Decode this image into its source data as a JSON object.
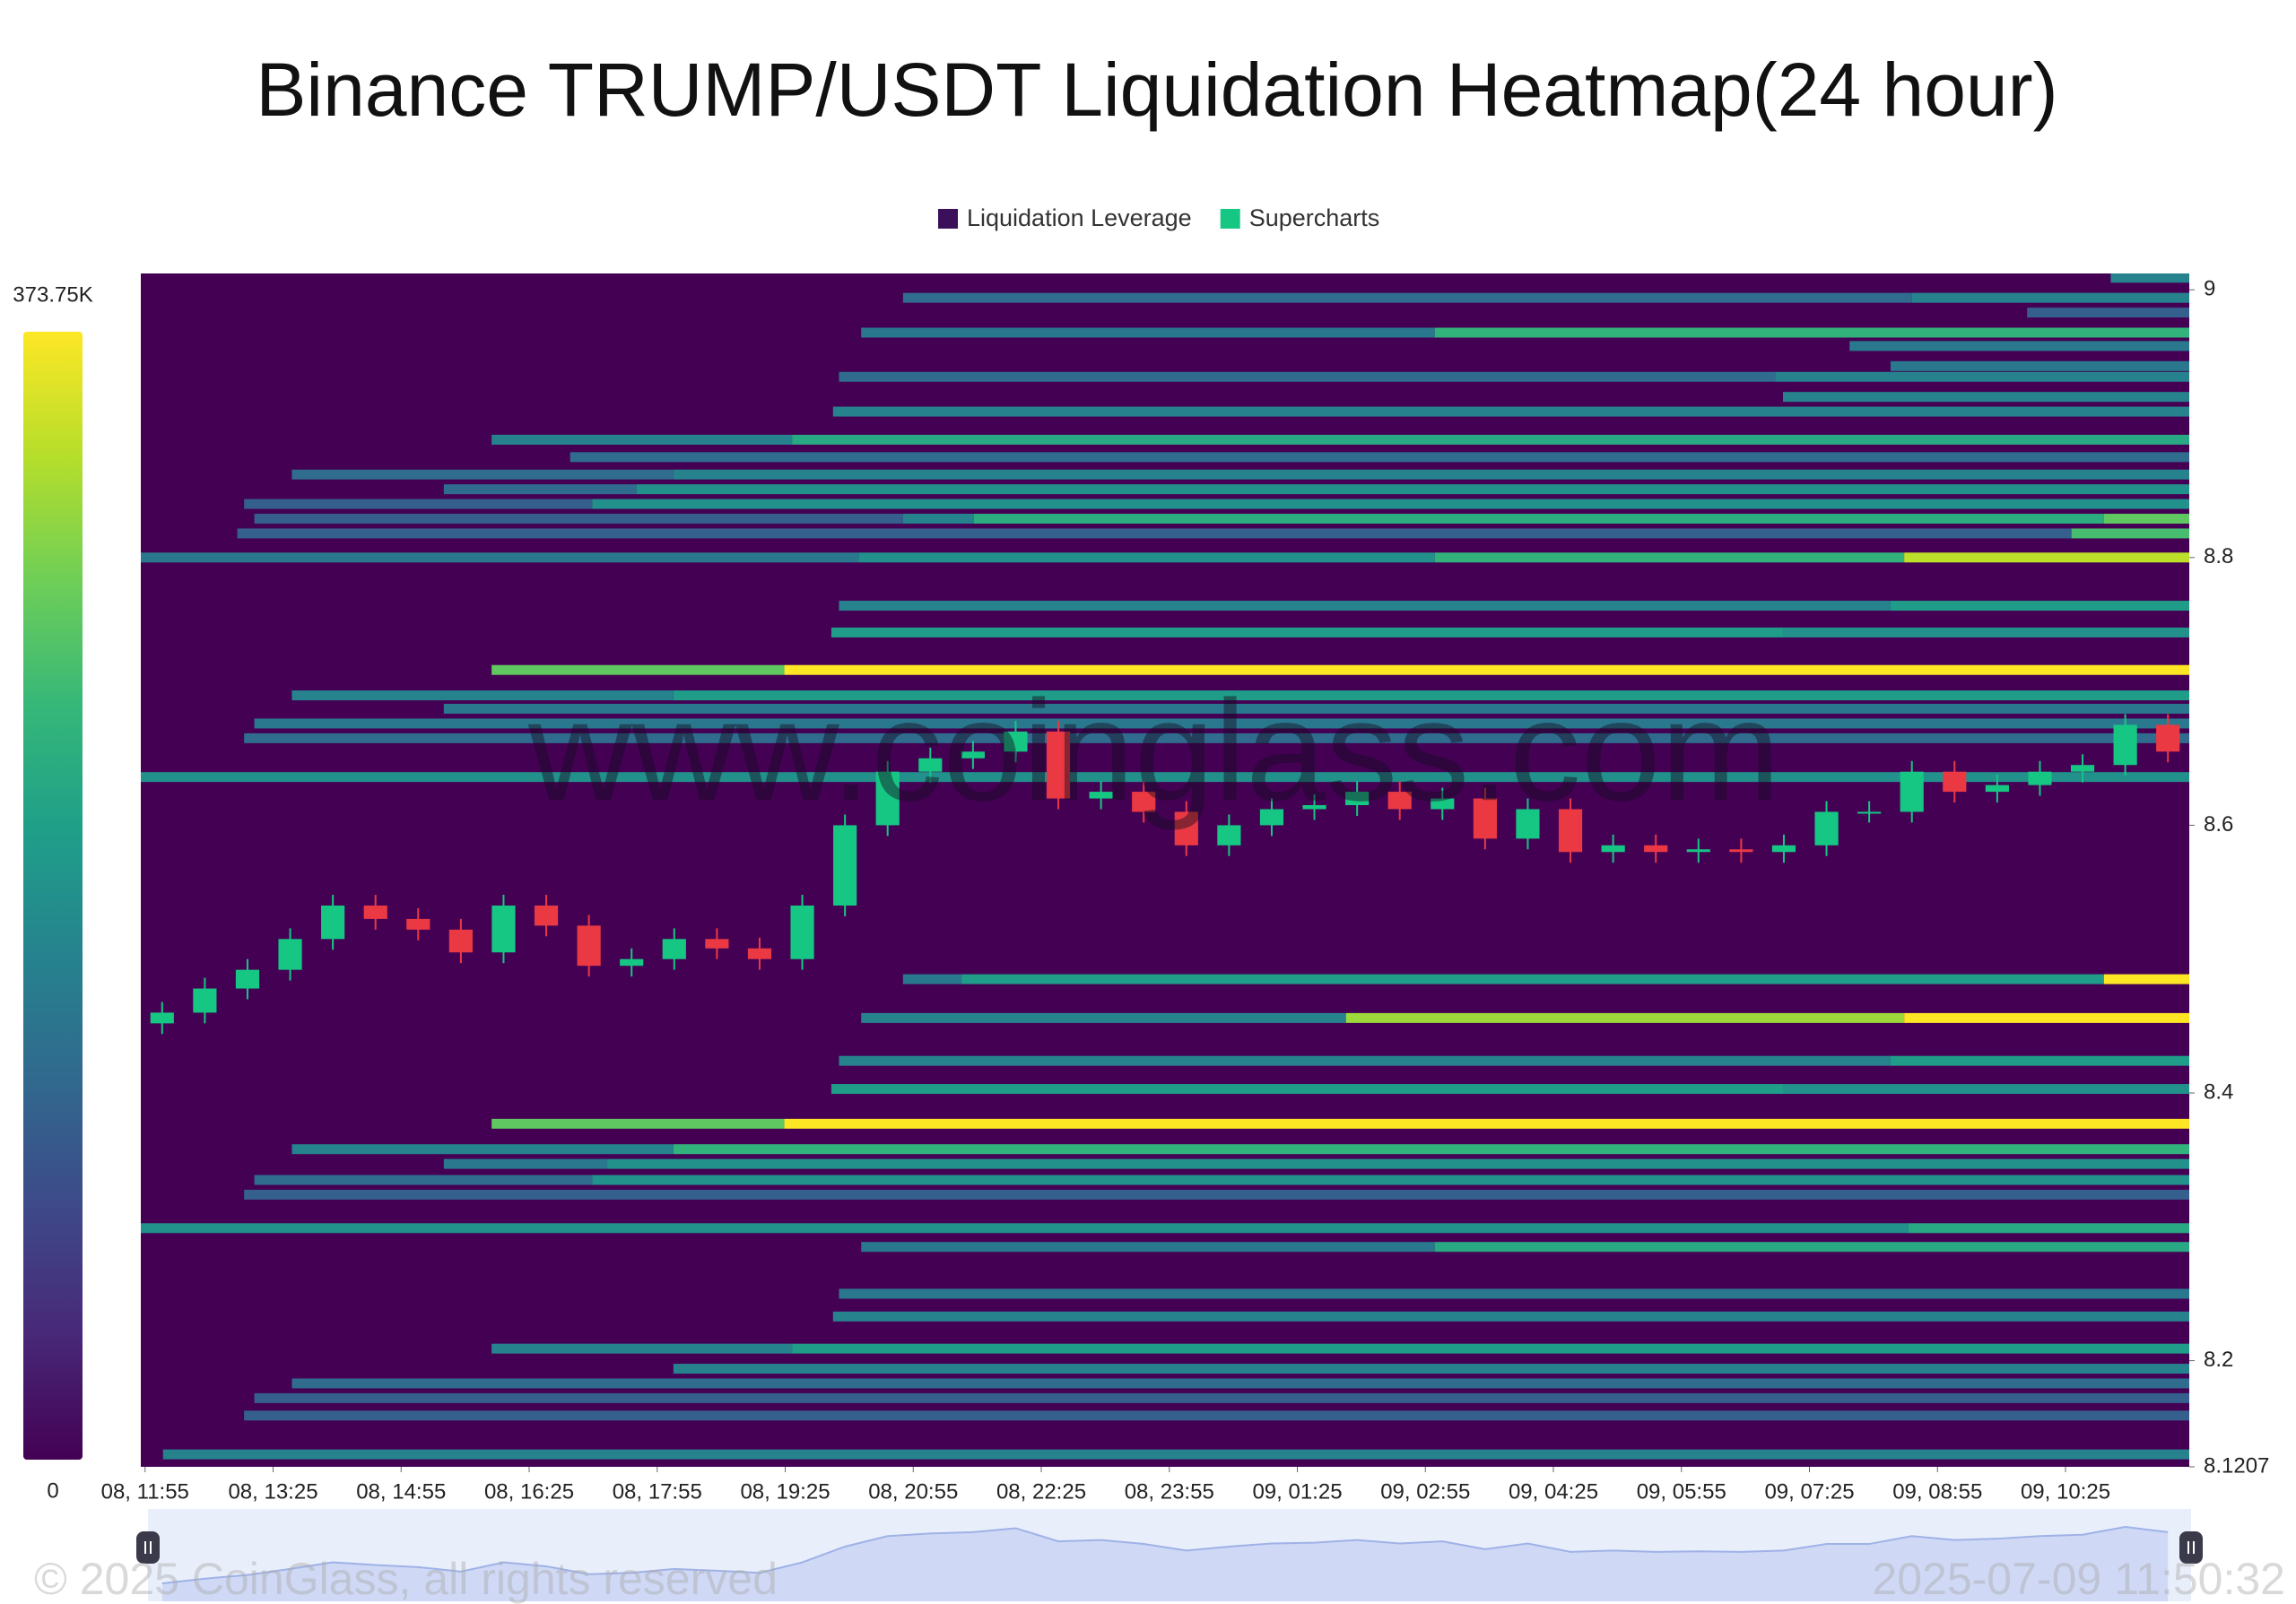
{
  "chart_data": {
    "type": "heatmap",
    "title": "Binance TRUMP/USDT Liquidation Heatmap(24 hour)",
    "legend": [
      {
        "name": "Liquidation Leverage",
        "color": "#3b0f5a"
      },
      {
        "name": "Supercharts",
        "color": "#16c784"
      }
    ],
    "xlim": [
      0,
      24
    ],
    "xticks": [
      {
        "value": 0.05,
        "label": "08, 11:55"
      },
      {
        "value": 1.55,
        "label": "08, 13:25"
      },
      {
        "value": 3.05,
        "label": "08, 14:55"
      },
      {
        "value": 4.55,
        "label": "08, 16:25"
      },
      {
        "value": 6.05,
        "label": "08, 17:55"
      },
      {
        "value": 7.55,
        "label": "08, 19:25"
      },
      {
        "value": 9.05,
        "label": "08, 20:55"
      },
      {
        "value": 10.55,
        "label": "08, 22:25"
      },
      {
        "value": 12.05,
        "label": "08, 23:55"
      },
      {
        "value": 13.55,
        "label": "09, 01:25"
      },
      {
        "value": 15.05,
        "label": "09, 02:55"
      },
      {
        "value": 16.55,
        "label": "09, 04:25"
      },
      {
        "value": 18.05,
        "label": "09, 05:55"
      },
      {
        "value": 19.55,
        "label": "09, 07:25"
      },
      {
        "value": 21.05,
        "label": "09, 08:55"
      },
      {
        "value": 22.55,
        "label": "09, 10:25"
      }
    ],
    "ylim": [
      8.1207,
      9.0122
    ],
    "yticks": [
      9,
      8.8,
      8.6,
      8.4,
      8.2,
      8.1207
    ],
    "colorscale": [
      "#440154",
      "#482878",
      "#3e4989",
      "#31688e",
      "#26828e",
      "#1f9e89",
      "#35b779",
      "#6ece58",
      "#b5de2b",
      "#fde725"
    ],
    "colorbar": {
      "lim": [
        0,
        373.75
      ],
      "ticks": [
        {
          "value": 0,
          "label": "0"
        },
        {
          "value": 373.75,
          "label": "373.75K"
        }
      ]
    },
    "heatmap": [
      {
        "price": 9.009,
        "start": [
          23.08
        ],
        "values": [
          168
        ]
      },
      {
        "price": 8.994,
        "start": [
          8.93,
          20.75
        ],
        "values": [
          131,
          168
        ]
      },
      {
        "price": 8.983,
        "start": [
          22.1
        ],
        "values": [
          112
        ]
      },
      {
        "price": 8.968,
        "start": [
          8.44,
          15.16
        ],
        "values": [
          150,
          243
        ]
      },
      {
        "price": 8.958,
        "start": [
          20.02
        ],
        "values": [
          150
        ]
      },
      {
        "price": 8.943,
        "start": [
          20.5
        ],
        "values": [
          150
        ]
      },
      {
        "price": 8.935,
        "start": [
          8.18,
          19.15
        ],
        "values": [
          131,
          168
        ]
      },
      {
        "price": 8.92,
        "start": [
          19.24
        ],
        "values": [
          168
        ]
      },
      {
        "price": 8.909,
        "start": [
          8.11
        ],
        "values": [
          168
        ]
      },
      {
        "price": 8.888,
        "start": [
          4.11,
          7.63
        ],
        "values": [
          168,
          224
        ]
      },
      {
        "price": 8.875,
        "start": [
          5.03
        ],
        "values": [
          131
        ]
      },
      {
        "price": 8.862,
        "start": [
          1.77,
          6.24
        ],
        "values": [
          131,
          168
        ]
      },
      {
        "price": 8.851,
        "start": [
          3.55,
          5.81
        ],
        "values": [
          131,
          187
        ]
      },
      {
        "price": 8.84,
        "start": [
          1.21,
          5.29
        ],
        "values": [
          112,
          187
        ]
      },
      {
        "price": 8.829,
        "start": [
          1.33,
          8.93,
          9.76,
          23.0
        ],
        "values": [
          112,
          168,
          232,
          280
        ]
      },
      {
        "price": 8.818,
        "start": [
          1.13,
          22.62
        ],
        "values": [
          112,
          262
        ]
      },
      {
        "price": 8.8,
        "start": [
          0,
          8.41,
          15.16,
          20.66
        ],
        "values": [
          150,
          187,
          243,
          336
        ]
      },
      {
        "price": 8.764,
        "start": [
          8.18,
          20.5
        ],
        "values": [
          168,
          206
        ]
      },
      {
        "price": 8.744,
        "start": [
          8.09,
          19.24
        ],
        "values": [
          206,
          187
        ]
      },
      {
        "price": 8.716,
        "start": [
          4.11,
          7.54
        ],
        "values": [
          280,
          373.75
        ]
      },
      {
        "price": 8.697,
        "start": [
          1.77,
          6.24
        ],
        "values": [
          168,
          206
        ]
      },
      {
        "price": 8.687,
        "start": [
          3.55
        ],
        "values": [
          150
        ]
      },
      {
        "price": 8.676,
        "start": [
          1.33
        ],
        "values": [
          150
        ]
      },
      {
        "price": 8.665,
        "start": [
          1.21
        ],
        "values": [
          131
        ]
      },
      {
        "price": 8.636,
        "start": [
          0
        ],
        "values": [
          187
        ]
      },
      {
        "price": 8.485,
        "start": [
          8.93,
          9.62,
          23.0
        ],
        "values": [
          150,
          206,
          373.75
        ]
      },
      {
        "price": 8.456,
        "start": [
          8.44,
          14.12,
          20.66
        ],
        "values": [
          168,
          318,
          373.75
        ]
      },
      {
        "price": 8.424,
        "start": [
          8.18,
          20.5
        ],
        "values": [
          168,
          206
        ]
      },
      {
        "price": 8.403,
        "start": [
          8.09,
          19.24
        ],
        "values": [
          206,
          187
        ]
      },
      {
        "price": 8.377,
        "start": [
          4.11,
          7.54
        ],
        "values": [
          280,
          373.75
        ]
      },
      {
        "price": 8.358,
        "start": [
          1.77,
          6.24
        ],
        "values": [
          168,
          243
        ]
      },
      {
        "price": 8.347,
        "start": [
          3.55,
          5.46
        ],
        "values": [
          150,
          187
        ]
      },
      {
        "price": 8.335,
        "start": [
          1.33,
          5.29
        ],
        "values": [
          131,
          187
        ]
      },
      {
        "price": 8.324,
        "start": [
          1.21
        ],
        "values": [
          112
        ]
      },
      {
        "price": 8.299,
        "start": [
          0,
          20.71
        ],
        "values": [
          187,
          224
        ]
      },
      {
        "price": 8.285,
        "start": [
          8.44,
          15.16
        ],
        "values": [
          150,
          224
        ]
      },
      {
        "price": 8.25,
        "start": [
          8.18
        ],
        "values": [
          150
        ]
      },
      {
        "price": 8.233,
        "start": [
          8.11
        ],
        "values": [
          168
        ]
      },
      {
        "price": 8.209,
        "start": [
          4.11,
          7.63
        ],
        "values": [
          168,
          206
        ]
      },
      {
        "price": 8.194,
        "start": [
          6.24
        ],
        "values": [
          168
        ]
      },
      {
        "price": 8.183,
        "start": [
          1.77
        ],
        "values": [
          131
        ]
      },
      {
        "price": 8.172,
        "start": [
          1.33
        ],
        "values": [
          112
        ]
      },
      {
        "price": 8.159,
        "start": [
          1.21
        ],
        "values": [
          112
        ]
      },
      {
        "price": 8.13,
        "start": [
          0.26
        ],
        "values": [
          168
        ]
      }
    ],
    "candles": {
      "up_color": "#16c784",
      "down_color": "#ea3943",
      "x": [
        0.25,
        0.75,
        1.25,
        1.75,
        2.25,
        2.75,
        3.25,
        3.75,
        4.25,
        4.75,
        5.25,
        5.75,
        6.25,
        6.75,
        7.25,
        7.75,
        8.25,
        8.75,
        9.25,
        9.75,
        10.25,
        10.75,
        11.25,
        11.75,
        12.25,
        12.75,
        13.25,
        13.75,
        14.25,
        14.75,
        15.25,
        15.75,
        16.25,
        16.75,
        17.25,
        17.75,
        18.25,
        18.75,
        19.25,
        19.75,
        20.25,
        20.75,
        21.25,
        21.75,
        22.25,
        22.75,
        23.25,
        23.75
      ],
      "open": [
        8.452,
        8.46,
        8.478,
        8.492,
        8.515,
        8.54,
        8.53,
        8.522,
        8.505,
        8.54,
        8.525,
        8.495,
        8.5,
        8.515,
        8.508,
        8.5,
        8.54,
        8.6,
        8.64,
        8.65,
        8.655,
        8.67,
        8.62,
        8.625,
        8.61,
        8.585,
        8.6,
        8.612,
        8.615,
        8.625,
        8.612,
        8.62,
        8.59,
        8.612,
        8.58,
        8.585,
        8.58,
        8.582,
        8.58,
        8.585,
        8.61,
        8.61,
        8.64,
        8.625,
        8.63,
        8.64,
        8.645,
        8.675
      ],
      "high": [
        8.468,
        8.486,
        8.5,
        8.523,
        8.548,
        8.548,
        8.538,
        8.53,
        8.548,
        8.548,
        8.533,
        8.508,
        8.523,
        8.523,
        8.516,
        8.548,
        8.608,
        8.648,
        8.658,
        8.663,
        8.678,
        8.678,
        8.633,
        8.633,
        8.618,
        8.608,
        8.62,
        8.623,
        8.633,
        8.633,
        8.628,
        8.628,
        8.62,
        8.62,
        8.593,
        8.593,
        8.59,
        8.59,
        8.593,
        8.618,
        8.618,
        8.648,
        8.648,
        8.638,
        8.648,
        8.653,
        8.683,
        8.683
      ],
      "low": [
        8.444,
        8.452,
        8.47,
        8.484,
        8.507,
        8.522,
        8.514,
        8.497,
        8.497,
        8.517,
        8.487,
        8.487,
        8.492,
        8.5,
        8.492,
        8.492,
        8.532,
        8.592,
        8.632,
        8.642,
        8.647,
        8.612,
        8.612,
        8.602,
        8.577,
        8.577,
        8.592,
        8.604,
        8.607,
        8.604,
        8.604,
        8.582,
        8.582,
        8.572,
        8.572,
        8.572,
        8.572,
        8.572,
        8.572,
        8.577,
        8.602,
        8.602,
        8.617,
        8.617,
        8.622,
        8.632,
        8.637,
        8.647
      ],
      "close": [
        8.46,
        8.478,
        8.492,
        8.515,
        8.54,
        8.53,
        8.522,
        8.505,
        8.54,
        8.525,
        8.495,
        8.5,
        8.515,
        8.508,
        8.5,
        8.54,
        8.6,
        8.64,
        8.65,
        8.655,
        8.67,
        8.62,
        8.625,
        8.61,
        8.585,
        8.6,
        8.612,
        8.615,
        8.625,
        8.612,
        8.62,
        8.59,
        8.612,
        8.58,
        8.585,
        8.58,
        8.582,
        8.58,
        8.585,
        8.61,
        8.61,
        8.64,
        8.625,
        8.63,
        8.64,
        8.645,
        8.675,
        8.655
      ]
    },
    "watermark": "www.coinglass.com",
    "copyright": "© 2025 CoinGlass, all rights reserved",
    "timestamp": "2025-07-09 11:50:32"
  }
}
